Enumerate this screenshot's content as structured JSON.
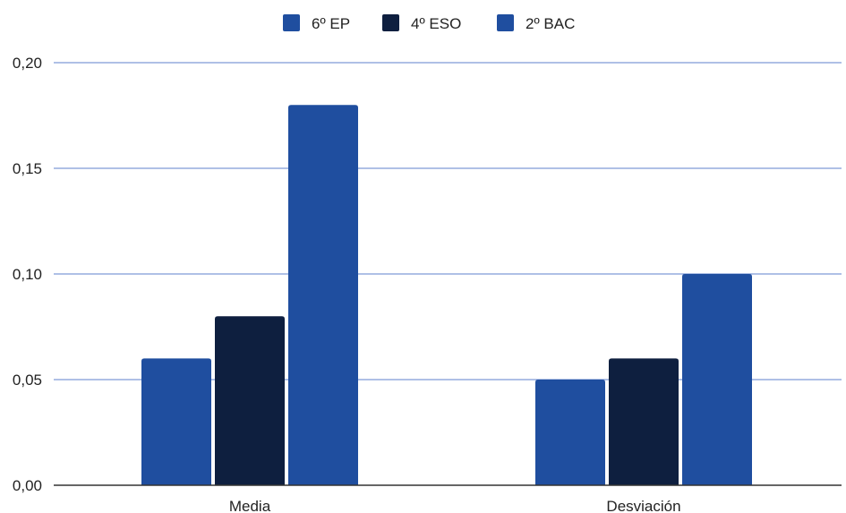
{
  "chart_data": {
    "type": "bar",
    "categories": [
      "Media",
      "Desviación"
    ],
    "series": [
      {
        "name": "6º EP",
        "color": "#1f4e9f",
        "values": [
          0.06,
          0.05
        ]
      },
      {
        "name": "4º ESO",
        "color": "#0e1f3f",
        "values": [
          0.08,
          0.06
        ]
      },
      {
        "name": "2º BAC",
        "color": "#1f4e9f",
        "values": [
          0.18,
          0.1
        ]
      }
    ],
    "title": "",
    "xlabel": "",
    "ylabel": "",
    "ylim": [
      0,
      0.2
    ],
    "yticks": [
      {
        "value": 0.0,
        "label": "0,00"
      },
      {
        "value": 0.05,
        "label": "0,05"
      },
      {
        "value": 0.1,
        "label": "0,10"
      },
      {
        "value": 0.15,
        "label": "0,15"
      },
      {
        "value": 0.2,
        "label": "0,20"
      }
    ],
    "grid": true,
    "gridline_color": "#7f9bd6",
    "legend_position": "top-center"
  }
}
